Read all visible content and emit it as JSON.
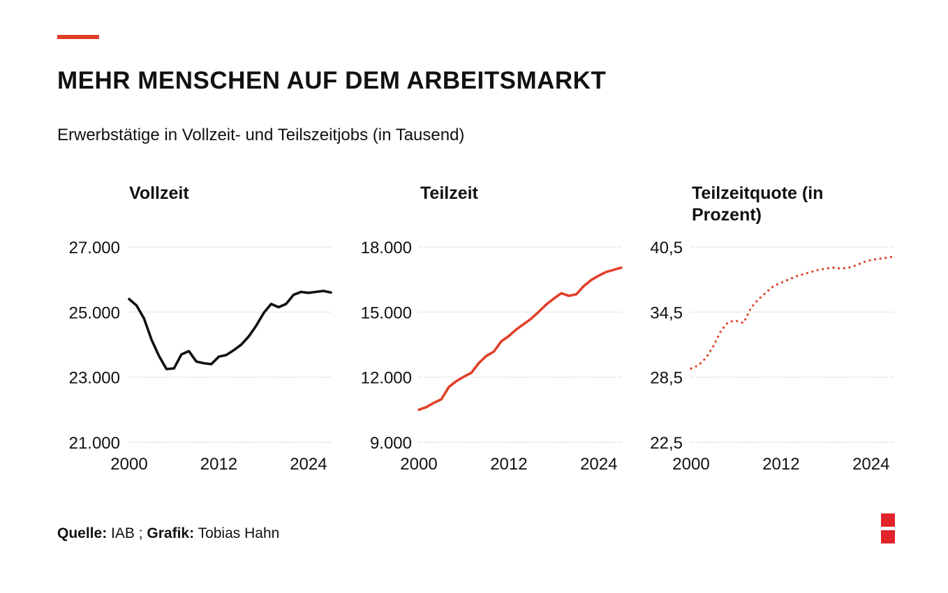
{
  "title": "MEHR MENSCHEN AUF DEM ARBEITSMARKT",
  "subtitle": "Erwerbstätige in Vollzeit- und Teilszeitjobs (in Tausend)",
  "source": {
    "source_label": "Quelle:",
    "source_value": "IAB ;",
    "graphic_label": "Grafik:",
    "graphic_value": "Tobias Hahn"
  },
  "colors": {
    "accent": "#e0402a",
    "vollzeit_line": "#111111",
    "teilzeit_line": "#e0402a",
    "quote_line": "#e0402a",
    "grid": "#b5b5b5"
  },
  "chart_data": [
    {
      "type": "line",
      "title": "Vollzeit",
      "x_ticks": [
        2000,
        2012,
        2024
      ],
      "y_ticks": [
        21000,
        23000,
        25000,
        27000
      ],
      "y_tick_labels": [
        "21.000",
        "23.000",
        "25.000",
        "27.000"
      ],
      "ylim": [
        21000,
        27000
      ],
      "xlim": [
        2000,
        2027
      ],
      "line_style": "solid",
      "grid": "horizontal dotted",
      "series": [
        {
          "x": [
            2000,
            2001,
            2002,
            2003,
            2004,
            2005,
            2006,
            2007,
            2008,
            2009,
            2010,
            2011,
            2012,
            2013,
            2014,
            2015,
            2016,
            2017,
            2018,
            2019,
            2020,
            2021,
            2022,
            2023,
            2024,
            2025,
            2026,
            2027
          ],
          "y": [
            25400,
            25200,
            24800,
            24150,
            23650,
            23250,
            23270,
            23700,
            23800,
            23480,
            23430,
            23400,
            23630,
            23680,
            23830,
            24000,
            24250,
            24580,
            24970,
            25250,
            25150,
            25250,
            25530,
            25620,
            25590,
            25620,
            25650,
            25600
          ]
        }
      ]
    },
    {
      "type": "line",
      "title": "Teilzeit",
      "x_ticks": [
        2000,
        2012,
        2024
      ],
      "y_ticks": [
        9000,
        12000,
        15000,
        18000
      ],
      "y_tick_labels": [
        "9.000",
        "12.000",
        "15.000",
        "18.000"
      ],
      "ylim": [
        9000,
        18000
      ],
      "xlim": [
        2000,
        2027
      ],
      "line_style": "solid",
      "grid": "horizontal dotted",
      "series": [
        {
          "x": [
            2000,
            2001,
            2002,
            2003,
            2004,
            2005,
            2006,
            2007,
            2008,
            2009,
            2010,
            2011,
            2012,
            2013,
            2014,
            2015,
            2016,
            2017,
            2018,
            2019,
            2020,
            2021,
            2022,
            2023,
            2024,
            2025,
            2026,
            2027
          ],
          "y": [
            10500,
            10620,
            10820,
            10980,
            11550,
            11820,
            12020,
            12200,
            12650,
            12980,
            13180,
            13650,
            13900,
            14200,
            14450,
            14700,
            15020,
            15350,
            15620,
            15870,
            15750,
            15820,
            16200,
            16480,
            16680,
            16850,
            16950,
            17050
          ]
        }
      ]
    },
    {
      "type": "line",
      "title": "Teilzeitquote (in Prozent)",
      "x_ticks": [
        2000,
        2012,
        2024
      ],
      "y_ticks": [
        22.5,
        28.5,
        34.5,
        40.5
      ],
      "y_tick_labels": [
        "22,5",
        "28,5",
        "34,5",
        "40,5"
      ],
      "ylim": [
        22.5,
        40.5
      ],
      "xlim": [
        2000,
        2027
      ],
      "line_style": "dotted",
      "grid": "horizontal dotted",
      "series": [
        {
          "x": [
            2000,
            2001,
            2002,
            2003,
            2004,
            2005,
            2006,
            2007,
            2008,
            2009,
            2010,
            2011,
            2012,
            2013,
            2014,
            2015,
            2016,
            2017,
            2018,
            2019,
            2020,
            2021,
            2022,
            2023,
            2024,
            2025,
            2026,
            2027
          ],
          "y": [
            29.3,
            29.6,
            30.3,
            31.4,
            32.8,
            33.6,
            33.7,
            33.5,
            34.9,
            35.7,
            36.3,
            36.9,
            37.2,
            37.5,
            37.8,
            38.0,
            38.2,
            38.4,
            38.5,
            38.6,
            38.5,
            38.6,
            38.8,
            39.1,
            39.3,
            39.4,
            39.5,
            39.6
          ]
        }
      ]
    }
  ]
}
